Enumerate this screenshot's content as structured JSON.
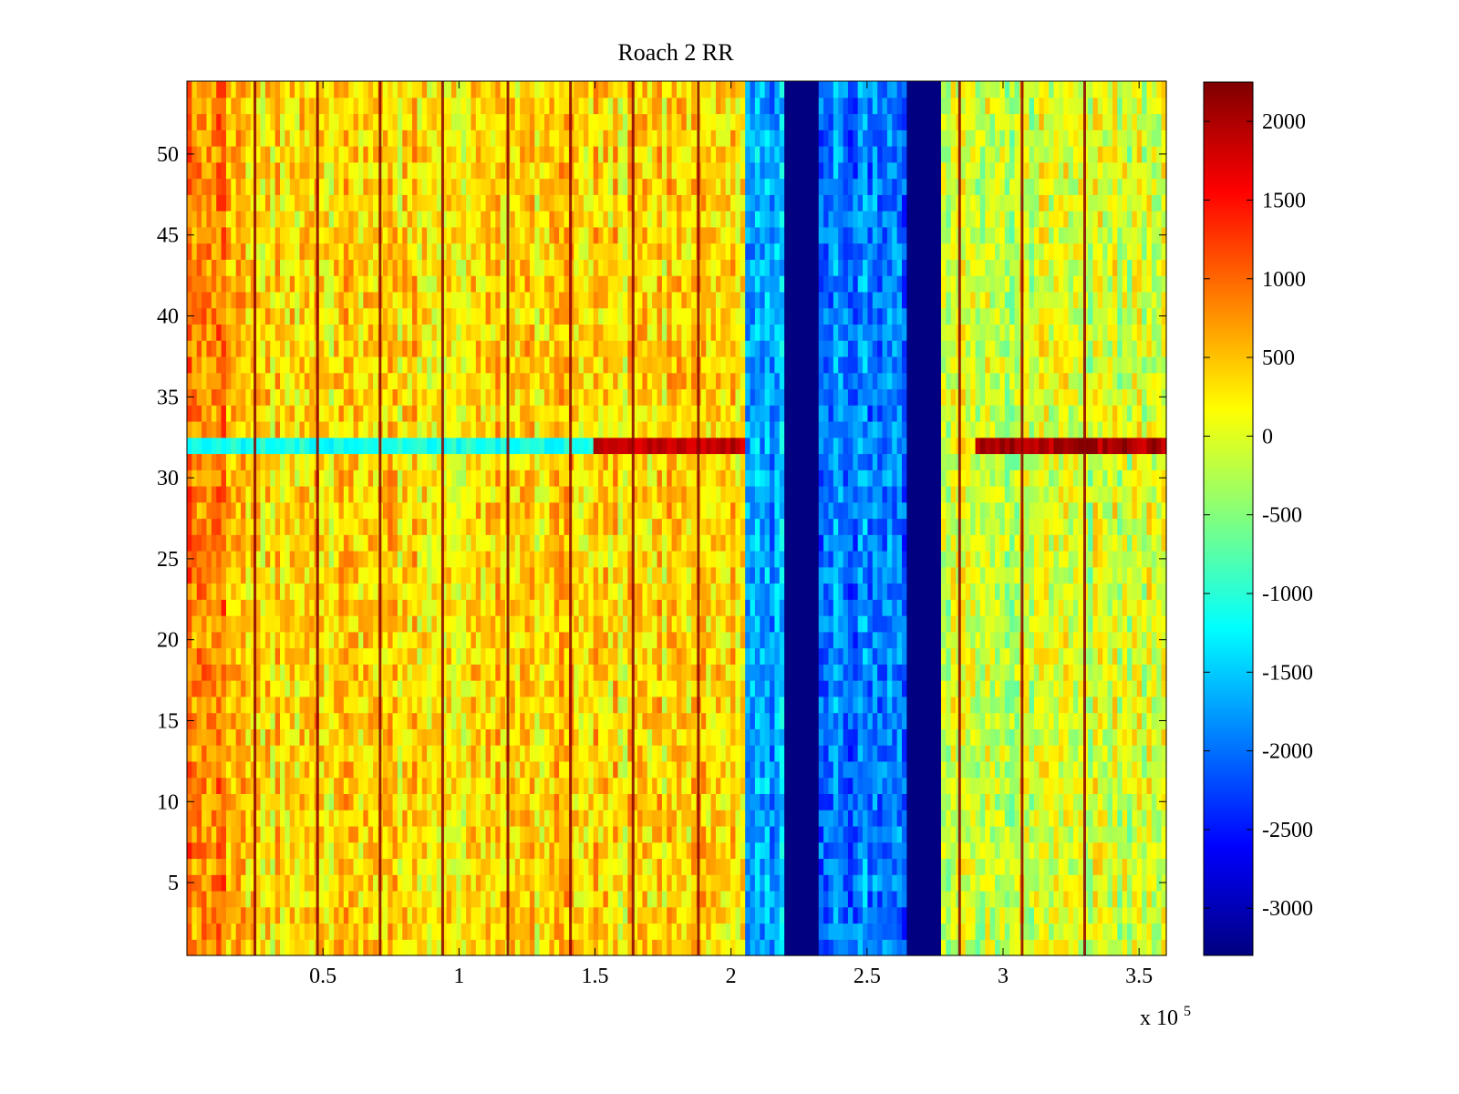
{
  "chart_data": {
    "type": "heatmap",
    "title": "Roach 2 RR",
    "xlabel": "",
    "ylabel": "",
    "x_multiplier_label": "x 10",
    "x_multiplier_exponent": "5",
    "xlim": [
      0,
      3.6
    ],
    "ylim": [
      0.5,
      54.5
    ],
    "rows": 54,
    "x_ticks": [
      0.5,
      1,
      1.5,
      2,
      2.5,
      3,
      3.5
    ],
    "x_tick_labels": [
      "0.5",
      "1",
      "1.5",
      "2",
      "2.5",
      "3",
      "3.5"
    ],
    "y_ticks": [
      5,
      10,
      15,
      20,
      25,
      30,
      35,
      40,
      45,
      50
    ],
    "y_tick_labels": [
      "5",
      "10",
      "15",
      "20",
      "25",
      "30",
      "35",
      "40",
      "45",
      "50"
    ],
    "colorbar": {
      "colormap": "jet",
      "clim": [
        -3300,
        2250
      ],
      "ticks": [
        2000,
        1500,
        1000,
        500,
        0,
        -500,
        -1000,
        -1500,
        -2000,
        -2500,
        -3000
      ],
      "tick_labels": [
        "2000",
        "1500",
        "1000",
        "500",
        "0",
        "-500",
        "-1000",
        "-1500",
        "-2000",
        "-2500",
        "-3000"
      ]
    },
    "regions": [
      {
        "name": "left-block",
        "x_start": 0.0,
        "x_end": 2.06,
        "mean_value": 350
      },
      {
        "name": "blue-block-1",
        "x_start": 2.06,
        "x_end": 2.2,
        "mean_value": -1650
      },
      {
        "name": "saturated-gap-1",
        "x_start": 2.2,
        "x_end": 2.33,
        "mean_value": -3300
      },
      {
        "name": "blue-block-2",
        "x_start": 2.33,
        "x_end": 2.65,
        "mean_value": -1900
      },
      {
        "name": "saturated-gap-2",
        "x_start": 2.65,
        "x_end": 2.78,
        "mean_value": -3300
      },
      {
        "name": "right-block",
        "x_start": 2.78,
        "x_end": 3.6,
        "mean_value": -100
      }
    ],
    "hot_row": {
      "row": 32,
      "segments": [
        {
          "x_start": 0.0,
          "x_end": 1.5,
          "value": -1100
        },
        {
          "x_start": 1.5,
          "x_end": 2.06,
          "value": 1900
        },
        {
          "x_start": 2.9,
          "x_end": 3.6,
          "value": 2000
        }
      ]
    },
    "bright_columns_x": [
      0.25,
      0.48,
      0.71,
      0.94,
      1.18,
      1.41,
      1.64,
      1.88,
      2.84,
      3.07,
      3.3
    ]
  }
}
